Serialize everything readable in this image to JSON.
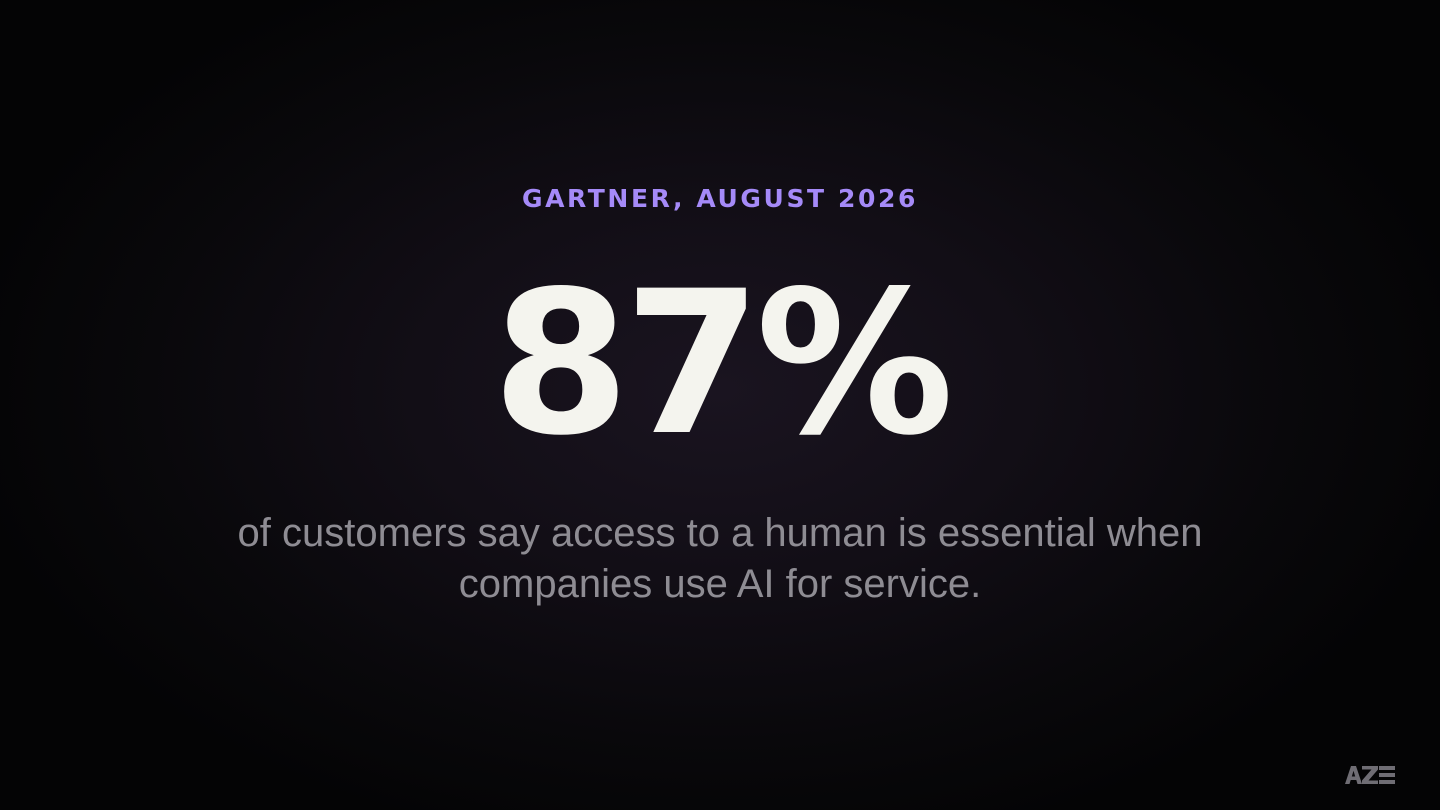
{
  "slide": {
    "source": "GARTNER, AUGUST 2026",
    "stat": "87%",
    "caption_line1": "of customers say access to a human is essential when",
    "caption_line2": "companies use AI for service."
  },
  "logo": {
    "icon": "aze-logo-icon",
    "text": "AZE"
  },
  "colors": {
    "accent": "#a58af8",
    "stat": "#f4f4ee",
    "caption": "#8e8c93",
    "background": "#09080b"
  }
}
